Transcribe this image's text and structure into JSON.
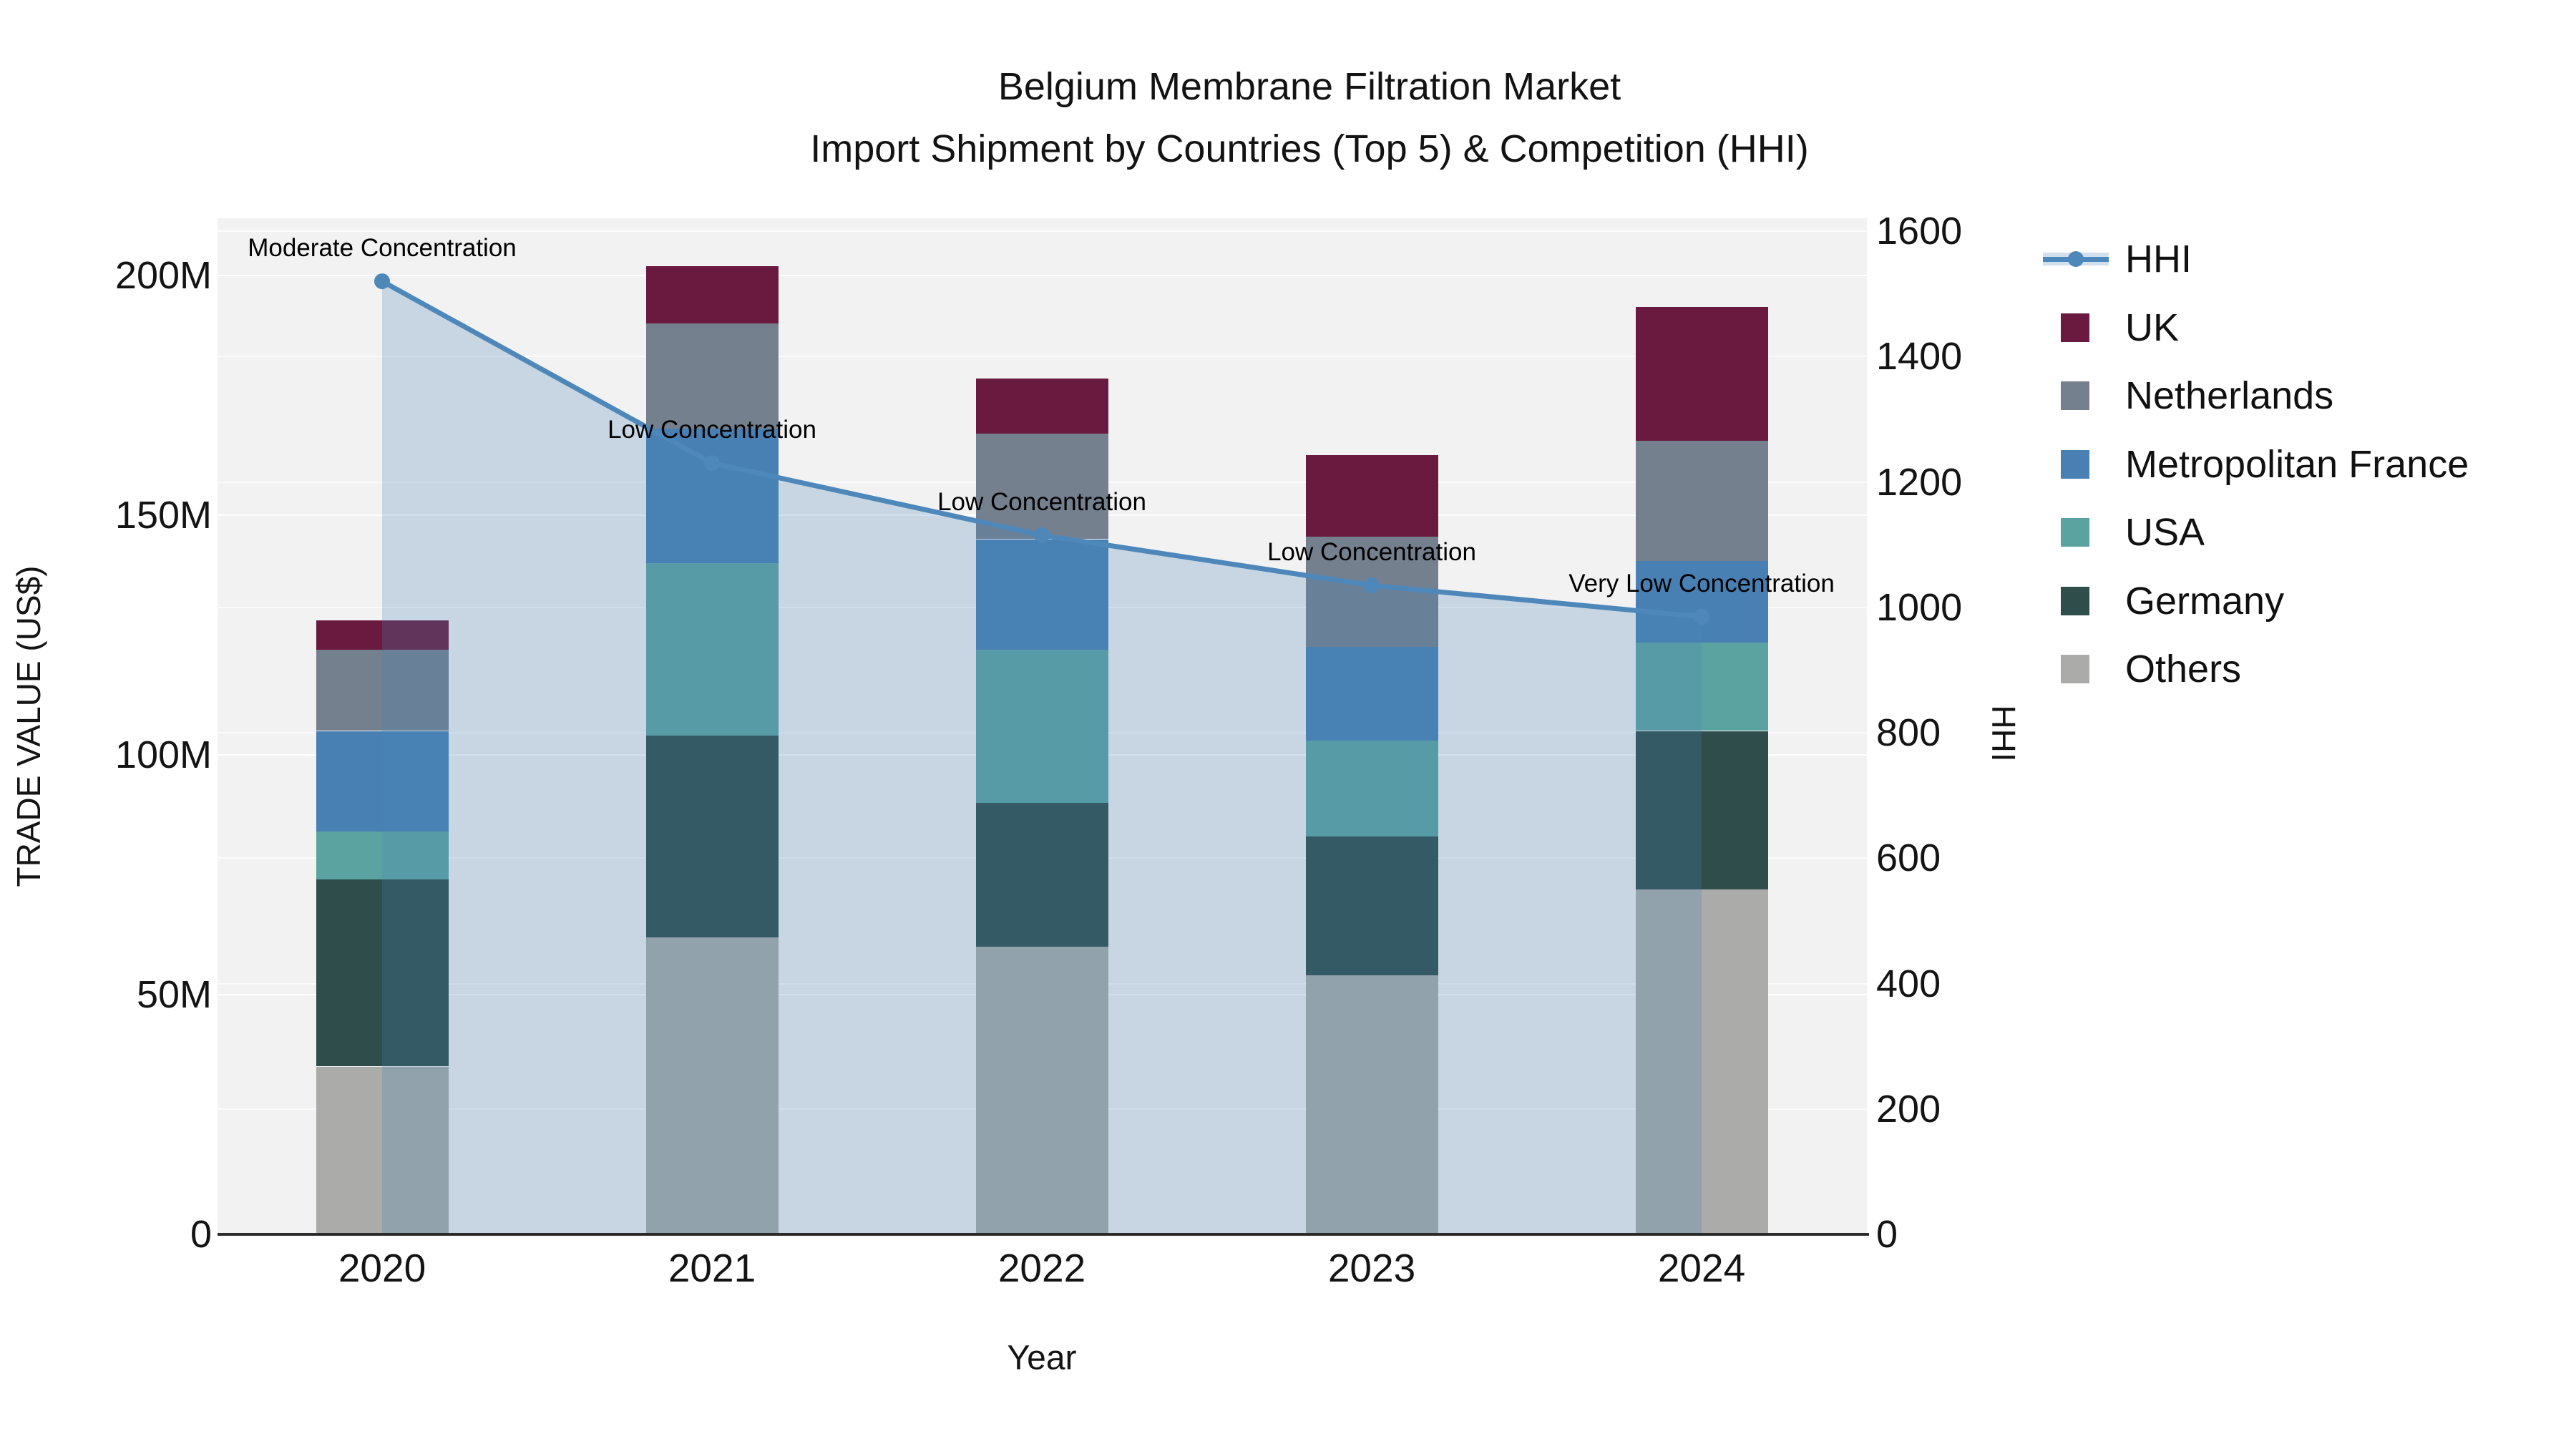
{
  "title": {
    "line1": "Belgium Membrane Filtration Market",
    "line2": "Import Shipment by Countries (Top 5) & Competition (HHI)"
  },
  "axes": {
    "left": {
      "label": "TRADE VALUE (US$)",
      "tick_labels": [
        "0",
        "50M",
        "100M",
        "150M",
        "200M"
      ],
      "tick_values": [
        0,
        50,
        100,
        150,
        200
      ]
    },
    "right": {
      "label": "HHI",
      "tick_labels": [
        "0",
        "200",
        "400",
        "600",
        "800",
        "1000",
        "1200",
        "1400",
        "1600"
      ],
      "tick_values": [
        0,
        200,
        400,
        600,
        800,
        1000,
        1200,
        1400,
        1600
      ]
    },
    "x": {
      "label": "Year",
      "categories": [
        "2020",
        "2021",
        "2022",
        "2023",
        "2024"
      ]
    }
  },
  "legend": {
    "items": [
      {
        "label": "HHI",
        "type": "line"
      },
      {
        "label": "UK",
        "type": "patch"
      },
      {
        "label": "Netherlands",
        "type": "patch"
      },
      {
        "label": "Metropolitan France",
        "type": "patch"
      },
      {
        "label": "USA",
        "type": "patch"
      },
      {
        "label": "Germany",
        "type": "patch"
      },
      {
        "label": "Others",
        "type": "patch"
      }
    ]
  },
  "colors": {
    "UK": "#6a1a3e",
    "Netherlands": "#75808f",
    "Metropolitan France": "#4880b4",
    "USA": "#5ba3a0",
    "Germany": "#2e4d4b",
    "Others": "#abacaa",
    "hhi_line": "#4e88ba",
    "hhi_fill": "rgba(70,130,180,0.25)",
    "plot_bg": "#f2f2f2",
    "grid": "#fafafa",
    "axis_line": "#2b2b2b",
    "text": "#111111"
  },
  "annotations": [
    {
      "category": "2020",
      "text": "Moderate Concentration"
    },
    {
      "category": "2021",
      "text": "Low Concentration"
    },
    {
      "category": "2022",
      "text": "Low Concentration"
    },
    {
      "category": "2023",
      "text": "Low Concentration"
    },
    {
      "category": "2024",
      "text": "Very Low Concentration"
    }
  ],
  "chart_data": {
    "type": "bar",
    "subtype": "stacked bars (left axis, trade value in millions US$) + line with markers (right axis, HHI)",
    "title": "Belgium Membrane Filtration Market — Import Shipment by Countries (Top 5) & Competition (HHI)",
    "xlabel": "Year",
    "ylabel_left": "TRADE VALUE (US$)",
    "ylabel_right": "HHI",
    "ylim_left_millions": [
      0,
      212
    ],
    "ylim_right": [
      0,
      1620
    ],
    "grid": true,
    "legend_position": "outside upper-right",
    "categories": [
      "2020",
      "2021",
      "2022",
      "2023",
      "2024"
    ],
    "stack_order_bottom_to_top": [
      "Others",
      "Germany",
      "USA",
      "Metropolitan France",
      "Netherlands",
      "UK"
    ],
    "series": [
      {
        "name": "UK",
        "axis": "left",
        "unit": "M US$",
        "values": [
          6,
          12,
          11.5,
          17,
          28
        ]
      },
      {
        "name": "Netherlands",
        "axis": "left",
        "unit": "M US$",
        "values": [
          17,
          22,
          22,
          23,
          25
        ]
      },
      {
        "name": "Metropolitan France",
        "axis": "left",
        "unit": "M US$",
        "values": [
          21,
          28,
          23,
          19.5,
          17
        ]
      },
      {
        "name": "USA",
        "axis": "left",
        "unit": "M US$",
        "values": [
          10,
          36,
          32,
          20,
          18.5
        ]
      },
      {
        "name": "Germany",
        "axis": "left",
        "unit": "M US$",
        "values": [
          39,
          42,
          30,
          29,
          33
        ]
      },
      {
        "name": "Others",
        "axis": "left",
        "unit": "M US$",
        "values": [
          35,
          62,
          60,
          54,
          72
        ]
      }
    ],
    "bar_totals_millions": [
      128,
      202,
      178.5,
      162.5,
      193.5
    ],
    "line_series": {
      "name": "HHI",
      "axis": "right",
      "values": [
        1520,
        1230,
        1115,
        1035,
        985
      ],
      "area_fill_to_zero": true
    }
  }
}
